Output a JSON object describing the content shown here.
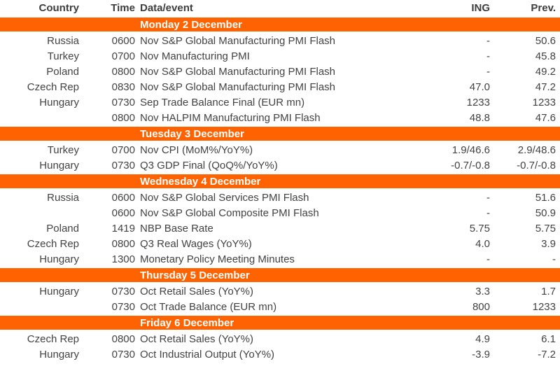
{
  "colors": {
    "banner_bg": "#FF6200",
    "banner_text": "#FFFFFF",
    "header_text": "#3D3D3D",
    "body_text": "#424242"
  },
  "table": {
    "columns": [
      {
        "label": "Country"
      },
      {
        "label": "Time"
      },
      {
        "label": "Data/event"
      },
      {
        "label": "ING"
      },
      {
        "label": "Prev."
      }
    ],
    "sections": [
      {
        "day": "Monday 2 December",
        "rows": [
          {
            "country": "Russia",
            "time": "0600",
            "event": "Nov S&P Global Manufacturing PMI Flash",
            "ing": "-",
            "prev": "50.6"
          },
          {
            "country": "Turkey",
            "time": "0700",
            "event": "Nov Manufacturing PMI",
            "ing": "-",
            "prev": "45.8"
          },
          {
            "country": "Poland",
            "time": "0800",
            "event": "Nov S&P Global Manufacturing PMI Flash",
            "ing": "-",
            "prev": "49.2"
          },
          {
            "country": "Czech Rep",
            "time": "0830",
            "event": "Nov S&P Global Manufacturing PMI Flash",
            "ing": "47.0",
            "prev": "47.2"
          },
          {
            "country": "Hungary",
            "time": "0730",
            "event": "Sep Trade Balance Final (EUR mn)",
            "ing": "1233",
            "prev": "1233"
          },
          {
            "country": "",
            "time": "0800",
            "event": "Nov HALPIM Manufacturing PMI Flash",
            "ing": "48.8",
            "prev": "47.6"
          }
        ]
      },
      {
        "day": "Tuesday 3 December",
        "rows": [
          {
            "country": "Turkey",
            "time": "0700",
            "event": "Nov CPI (MoM%/YoY%)",
            "ing": "1.9/46.6",
            "prev": "2.9/48.6"
          },
          {
            "country": "Hungary",
            "time": "0730",
            "event": "Q3 GDP Final (QoQ%/YoY%)",
            "ing": "-0.7/-0.8",
            "prev": "-0.7/-0.8"
          }
        ]
      },
      {
        "day": "Wednesday 4 December",
        "rows": [
          {
            "country": "Russia",
            "time": "0600",
            "event": "Nov S&P Global Services PMI Flash",
            "ing": "-",
            "prev": "51.6"
          },
          {
            "country": "",
            "time": "0600",
            "event": "Nov S&P Global Composite PMI Flash",
            "ing": "-",
            "prev": "50.9"
          },
          {
            "country": "Poland",
            "time": "1419",
            "event": "NBP Base Rate",
            "ing": "5.75",
            "prev": "5.75"
          },
          {
            "country": "Czech Rep",
            "time": "0800",
            "event": "Q3 Real Wages (YoY%)",
            "ing": "4.0",
            "prev": "3.9"
          },
          {
            "country": "Hungary",
            "time": "1300",
            "event": "Monetary Policy Meeting Minutes",
            "ing": "-",
            "prev": "-"
          }
        ]
      },
      {
        "day": "Thursday 5 December",
        "rows": [
          {
            "country": "Hungary",
            "time": "0730",
            "event": "Oct Retail Sales (YoY%)",
            "ing": "3.3",
            "prev": "1.7"
          },
          {
            "country": "",
            "time": "0730",
            "event": "Oct Trade Balance (EUR mn)",
            "ing": "800",
            "prev": "1233"
          }
        ]
      },
      {
        "day": "Friday 6 December",
        "rows": [
          {
            "country": "Czech Rep",
            "time": "0800",
            "event": "Oct Retail Sales (YoY%)",
            "ing": "4.9",
            "prev": "6.1"
          },
          {
            "country": "Hungary",
            "time": "0730",
            "event": "Oct Industrial Output (YoY%)",
            "ing": "-3.9",
            "prev": "-7.2"
          }
        ]
      }
    ]
  }
}
